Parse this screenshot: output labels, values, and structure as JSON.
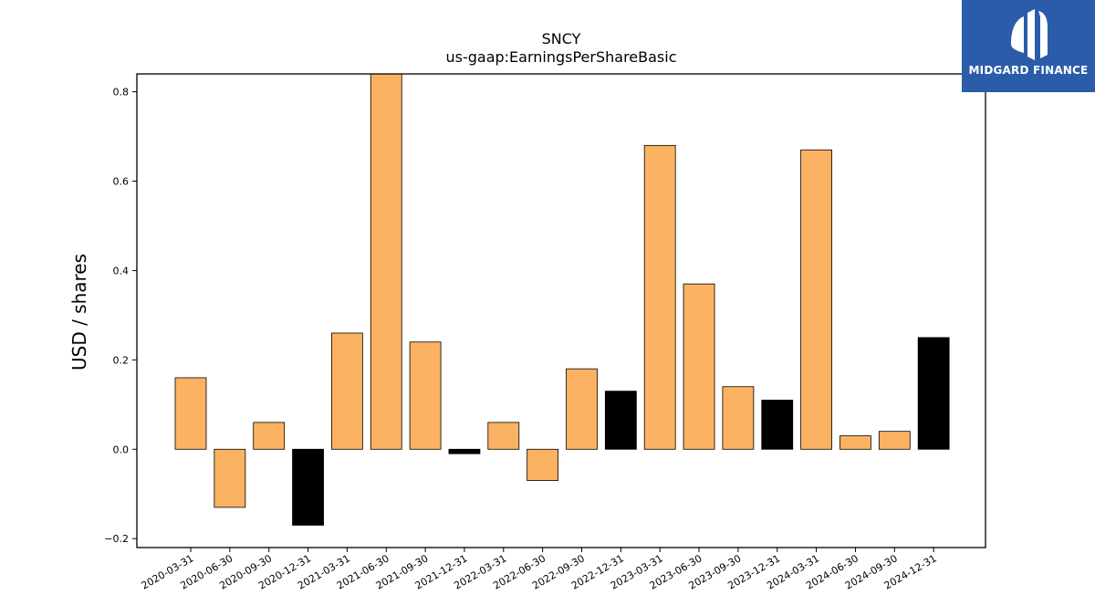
{
  "chart_data": {
    "type": "bar",
    "title": "SNCY",
    "subtitle": "us-gaap:EarningsPerShareBasic",
    "xlabel": "",
    "ylabel": "USD / shares",
    "ylim": [
      -0.22,
      0.84
    ],
    "yticks": [
      -0.2,
      0.0,
      0.2,
      0.4,
      0.6,
      0.8
    ],
    "ytick_labels": [
      "−0.2",
      "0.0",
      "0.2",
      "0.4",
      "0.6",
      "0.8"
    ],
    "categories": [
      "2020-03-31",
      "2020-06-30",
      "2020-09-30",
      "2020-12-31",
      "2021-03-31",
      "2021-06-30",
      "2021-09-30",
      "2021-12-31",
      "2022-03-31",
      "2022-06-30",
      "2022-09-30",
      "2022-12-31",
      "2023-03-31",
      "2023-06-30",
      "2023-09-30",
      "2023-12-31",
      "2024-03-31",
      "2024-06-30",
      "2024-09-30",
      "2024-12-31"
    ],
    "values": [
      0.16,
      -0.13,
      0.06,
      -0.17,
      0.26,
      0.85,
      0.24,
      -0.01,
      0.06,
      -0.07,
      0.18,
      0.13,
      0.68,
      0.37,
      0.14,
      0.11,
      0.67,
      0.03,
      0.04,
      0.25
    ],
    "colors": [
      "#fbb262",
      "#fbb262",
      "#fbb262",
      "#000000",
      "#fbb262",
      "#fbb262",
      "#fbb262",
      "#000000",
      "#fbb262",
      "#fbb262",
      "#fbb262",
      "#000000",
      "#fbb262",
      "#fbb262",
      "#fbb262",
      "#000000",
      "#fbb262",
      "#fbb262",
      "#fbb262",
      "#000000"
    ],
    "grid": false,
    "legend": "none"
  },
  "logo": {
    "text": "MIDGARD FINANCE",
    "background": "#2a5caa"
  }
}
